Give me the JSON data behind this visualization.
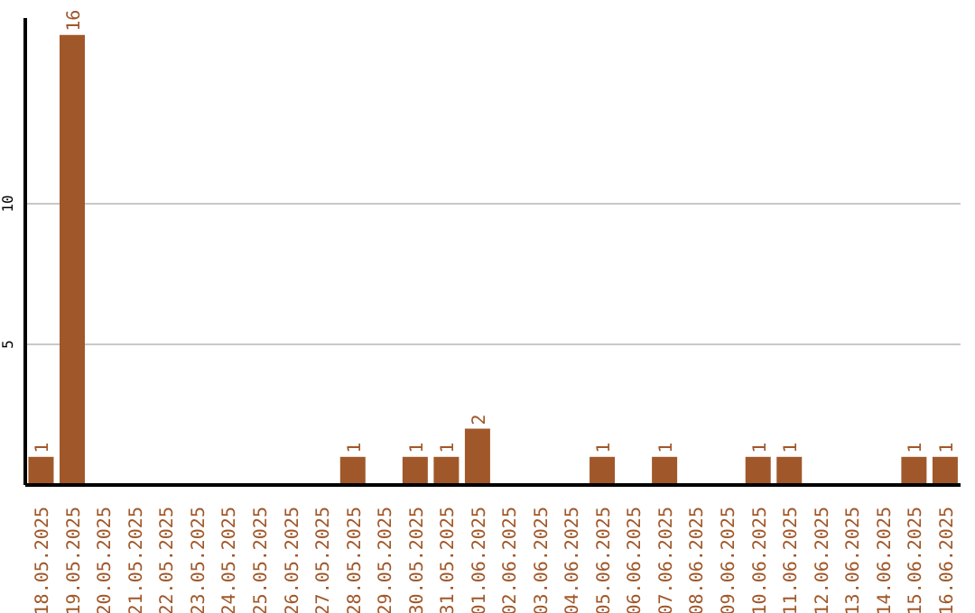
{
  "chart_data": {
    "type": "bar",
    "categories": [
      "18.05.2025",
      "19.05.2025",
      "20.05.2025",
      "21.05.2025",
      "22.05.2025",
      "23.05.2025",
      "24.05.2025",
      "25.05.2025",
      "26.05.2025",
      "27.05.2025",
      "28.05.2025",
      "29.05.2025",
      "30.05.2025",
      "31.05.2025",
      "01.06.2025",
      "02.06.2025",
      "03.06.2025",
      "04.06.2025",
      "05.06.2025",
      "06.06.2025",
      "07.06.2025",
      "08.06.2025",
      "09.06.2025",
      "10.06.2025",
      "11.06.2025",
      "12.06.2025",
      "13.06.2025",
      "14.06.2025",
      "15.06.2025",
      "16.06.2025"
    ],
    "values": [
      1,
      16,
      0,
      0,
      0,
      0,
      0,
      0,
      0,
      0,
      1,
      0,
      1,
      1,
      2,
      0,
      0,
      0,
      1,
      0,
      1,
      0,
      0,
      1,
      1,
      0,
      0,
      0,
      1,
      1
    ],
    "value_labels": [
      "1",
      "16",
      null,
      null,
      null,
      null,
      null,
      null,
      null,
      null,
      "1",
      null,
      "1",
      "1",
      "2",
      null,
      null,
      null,
      "1",
      null,
      "1",
      null,
      null,
      "1",
      "1",
      null,
      null,
      null,
      "1",
      "1"
    ],
    "color": "#a0582a",
    "ylim": [
      0,
      16.6
    ],
    "yticks": [
      5,
      10
    ],
    "grid": "y"
  }
}
